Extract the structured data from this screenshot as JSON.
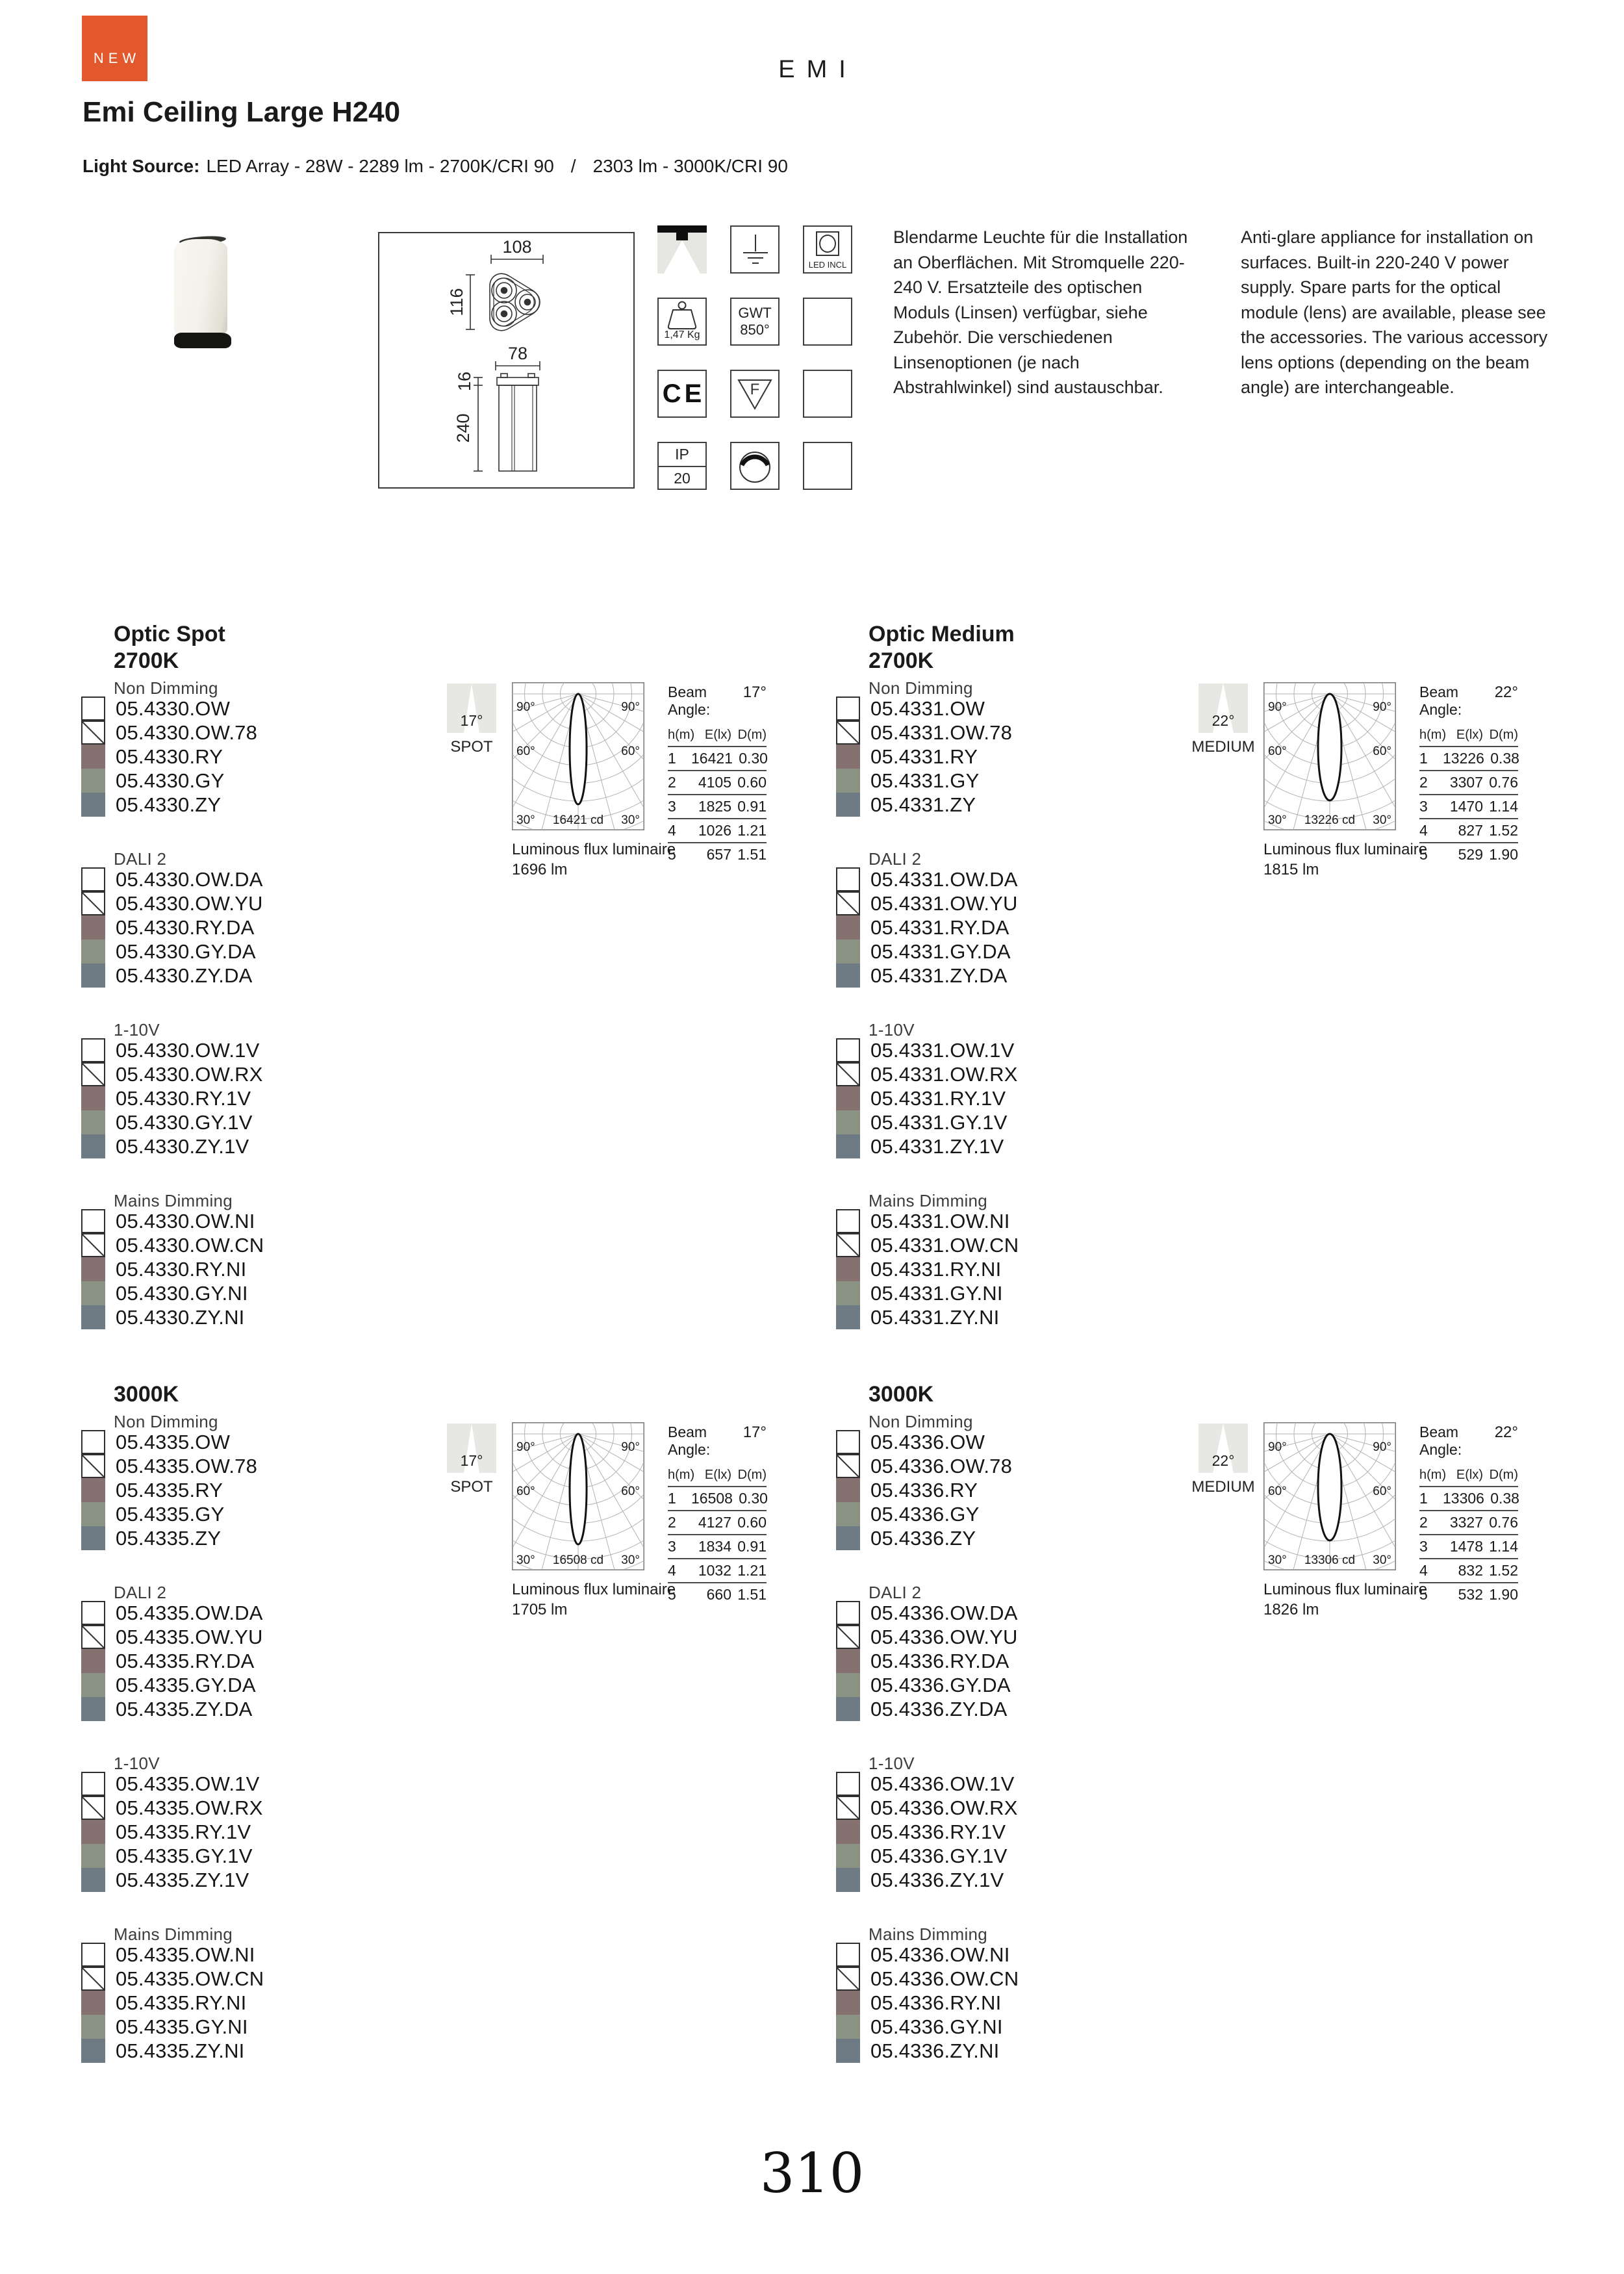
{
  "badge": {
    "label": "NEW",
    "color": "#e2572b"
  },
  "header": {
    "brand": "EMI",
    "title": "Emi Ceiling Large H240",
    "light_source_label": "Light Source:",
    "light_source_value_1": "LED Array - 28W - 2289 lm - 2700K/CRI 90",
    "light_source_separator": "/",
    "light_source_value_2": "2303 lm - 3000K/CRI 90"
  },
  "tech": {
    "dims": {
      "top_width": "108",
      "top_height": "116",
      "side_width": "78",
      "plate": "16",
      "body": "240"
    }
  },
  "icons": {
    "led_incl": "LED INCL",
    "weight": "1,47 Kg",
    "gwt_line1": "GWT",
    "gwt_line2": "850°",
    "ce": "CE",
    "f": "F",
    "ip": "IP",
    "ip_value": "20"
  },
  "descriptions": {
    "de": "Blendarme Leuchte für die Installation an Oberflächen. Mit Stromquelle 220-240 V. Ersatzteile des optischen Moduls (Linsen) verfügbar, siehe Zubehör. Die verschiedenen Linsenoptionen (je nach Abstrahlwinkel) sind austauschbar.",
    "en": "Anti-glare appliance for installation on surfaces. Built-in 220-240 V power supply. Spare parts for the optical module (lens) are available, please see the accessories. The various accessory lens options (depending on the beam angle) are interchangeable."
  },
  "catalog": {
    "swatch_order": [
      "ow",
      "diag",
      "ry",
      "gy",
      "zy"
    ],
    "swatch_colors": {
      "ry": "#857170",
      "gy": "#8a9284",
      "zy": "#6e7b84"
    },
    "quadrants": [
      {
        "title_lines": [
          "Optic Spot",
          "2700K"
        ],
        "groups": [
          {
            "label": "Non Dimming",
            "codes": [
              "05.4330.OW",
              "05.4330.OW.78",
              "05.4330.RY",
              "05.4330.GY",
              "05.4330.ZY"
            ]
          },
          {
            "label": "DALI 2",
            "codes": [
              "05.4330.OW.DA",
              "05.4330.OW.YU",
              "05.4330.RY.DA",
              "05.4330.GY.DA",
              "05.4330.ZY.DA"
            ]
          },
          {
            "label": "1-10V",
            "codes": [
              "05.4330.OW.1V",
              "05.4330.OW.RX",
              "05.4330.RY.1V",
              "05.4330.GY.1V",
              "05.4330.ZY.1V"
            ]
          },
          {
            "label": "Mains Dimming",
            "codes": [
              "05.4330.OW.NI",
              "05.4330.OW.CN",
              "05.4330.RY.NI",
              "05.4330.GY.NI",
              "05.4330.ZY.NI"
            ]
          }
        ]
      },
      {
        "title_lines": [
          "Optic Medium",
          "2700K"
        ],
        "groups": [
          {
            "label": "Non Dimming",
            "codes": [
              "05.4331.OW",
              "05.4331.OW.78",
              "05.4331.RY",
              "05.4331.GY",
              "05.4331.ZY"
            ]
          },
          {
            "label": "DALI 2",
            "codes": [
              "05.4331.OW.DA",
              "05.4331.OW.YU",
              "05.4331.RY.DA",
              "05.4331.GY.DA",
              "05.4331.ZY.DA"
            ]
          },
          {
            "label": "1-10V",
            "codes": [
              "05.4331.OW.1V",
              "05.4331.OW.RX",
              "05.4331.RY.1V",
              "05.4331.GY.1V",
              "05.4331.ZY.1V"
            ]
          },
          {
            "label": "Mains Dimming",
            "codes": [
              "05.4331.OW.NI",
              "05.4331.OW.CN",
              "05.4331.RY.NI",
              "05.4331.GY.NI",
              "05.4331.ZY.NI"
            ]
          }
        ]
      },
      {
        "title_lines": [
          "3000K"
        ],
        "groups": [
          {
            "label": "Non Dimming",
            "codes": [
              "05.4335.OW",
              "05.4335.OW.78",
              "05.4335.RY",
              "05.4335.GY",
              "05.4335.ZY"
            ]
          },
          {
            "label": "DALI 2",
            "codes": [
              "05.4335.OW.DA",
              "05.4335.OW.YU",
              "05.4335.RY.DA",
              "05.4335.GY.DA",
              "05.4335.ZY.DA"
            ]
          },
          {
            "label": "1-10V",
            "codes": [
              "05.4335.OW.1V",
              "05.4335.OW.RX",
              "05.4335.RY.1V",
              "05.4335.GY.1V",
              "05.4335.ZY.1V"
            ]
          },
          {
            "label": "Mains Dimming",
            "codes": [
              "05.4335.OW.NI",
              "05.4335.OW.CN",
              "05.4335.RY.NI",
              "05.4335.GY.NI",
              "05.4335.ZY.NI"
            ]
          }
        ]
      },
      {
        "title_lines": [
          "3000K"
        ],
        "groups": [
          {
            "label": "Non Dimming",
            "codes": [
              "05.4336.OW",
              "05.4336.OW.78",
              "05.4336.RY",
              "05.4336.GY",
              "05.4336.ZY"
            ]
          },
          {
            "label": "DALI 2",
            "codes": [
              "05.4336.OW.DA",
              "05.4336.OW.YU",
              "05.4336.RY.DA",
              "05.4336.GY.DA",
              "05.4336.ZY.DA"
            ]
          },
          {
            "label": "1-10V",
            "codes": [
              "05.4336.OW.1V",
              "05.4336.OW.RX",
              "05.4336.RY.1V",
              "05.4336.GY.1V",
              "05.4336.ZY.1V"
            ]
          },
          {
            "label": "Mains Dimming",
            "codes": [
              "05.4336.OW.NI",
              "05.4336.OW.CN",
              "05.4336.RY.NI",
              "05.4336.GY.NI",
              "05.4336.ZY.NI"
            ]
          }
        ]
      }
    ],
    "photometry": [
      {
        "type": "spot",
        "angle": "17°",
        "optic": "SPOT",
        "cd": "16421 cd",
        "flux_label": "Luminous flux luminaire",
        "flux": "1696 lm",
        "beam_label": "Beam Angle:",
        "beam_value": "17°",
        "headers": [
          "h(m)",
          "E(lx)",
          "D(m)"
        ],
        "rows": [
          [
            "1",
            "16421",
            "0.30"
          ],
          [
            "2",
            "4105",
            "0.60"
          ],
          [
            "3",
            "1825",
            "0.91"
          ],
          [
            "4",
            "1026",
            "1.21"
          ],
          [
            "5",
            "657",
            "1.51"
          ]
        ],
        "polar_labels": [
          "90°",
          "90°",
          "60°",
          "60°",
          "30°",
          "30°"
        ]
      },
      {
        "type": "medium",
        "angle": "22°",
        "optic": "MEDIUM",
        "cd": "13226 cd",
        "flux_label": "Luminous flux luminaire",
        "flux": "1815 lm",
        "beam_label": "Beam Angle:",
        "beam_value": "22°",
        "headers": [
          "h(m)",
          "E(lx)",
          "D(m)"
        ],
        "rows": [
          [
            "1",
            "13226",
            "0.38"
          ],
          [
            "2",
            "3307",
            "0.76"
          ],
          [
            "3",
            "1470",
            "1.14"
          ],
          [
            "4",
            "827",
            "1.52"
          ],
          [
            "5",
            "529",
            "1.90"
          ]
        ],
        "polar_labels": [
          "90°",
          "90°",
          "60°",
          "60°",
          "30°",
          "30°"
        ]
      },
      {
        "type": "spot",
        "angle": "17°",
        "optic": "SPOT",
        "cd": "16508 cd",
        "flux_label": "Luminous flux luminaire",
        "flux": "1705 lm",
        "beam_label": "Beam Angle:",
        "beam_value": "17°",
        "headers": [
          "h(m)",
          "E(lx)",
          "D(m)"
        ],
        "rows": [
          [
            "1",
            "16508",
            "0.30"
          ],
          [
            "2",
            "4127",
            "0.60"
          ],
          [
            "3",
            "1834",
            "0.91"
          ],
          [
            "4",
            "1032",
            "1.21"
          ],
          [
            "5",
            "660",
            "1.51"
          ]
        ],
        "polar_labels": [
          "90°",
          "90°",
          "60°",
          "60°",
          "30°",
          "30°"
        ]
      },
      {
        "type": "medium",
        "angle": "22°",
        "optic": "MEDIUM",
        "cd": "13306 cd",
        "flux_label": "Luminous flux luminaire",
        "flux": "1826 lm",
        "beam_label": "Beam Angle:",
        "beam_value": "22°",
        "headers": [
          "h(m)",
          "E(lx)",
          "D(m)"
        ],
        "rows": [
          [
            "1",
            "13306",
            "0.38"
          ],
          [
            "2",
            "3327",
            "0.76"
          ],
          [
            "3",
            "1478",
            "1.14"
          ],
          [
            "4",
            "832",
            "1.52"
          ],
          [
            "5",
            "532",
            "1.90"
          ]
        ],
        "polar_labels": [
          "90°",
          "90°",
          "60°",
          "60°",
          "30°",
          "30°"
        ]
      }
    ]
  },
  "footer": {
    "page": "310"
  }
}
